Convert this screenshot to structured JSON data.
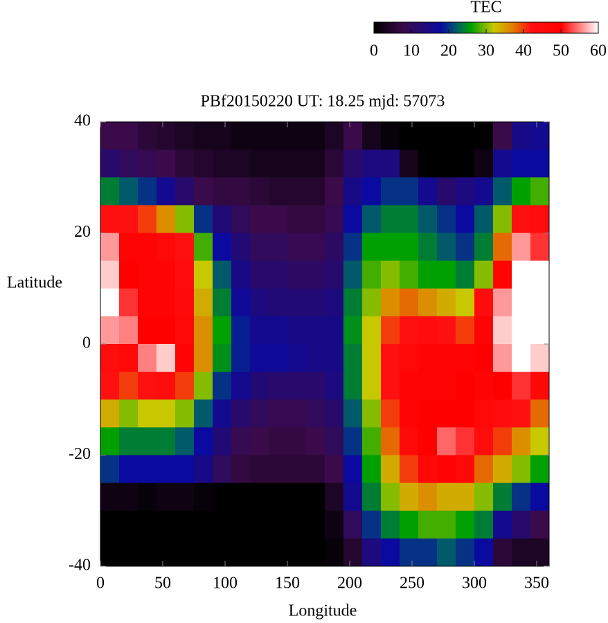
{
  "chart_data": {
    "type": "heatmap",
    "title": "PBf20150220  UT: 18.25  mjd: 57073",
    "xlabel": "Longitude",
    "ylabel": "Latitude",
    "colorbar_label": "TEC",
    "xlim": [
      0,
      360
    ],
    "xticks": [
      0,
      50,
      100,
      150,
      200,
      250,
      300,
      350
    ],
    "ylim": [
      -40,
      40
    ],
    "yticks": [
      -40,
      -20,
      0,
      20,
      40
    ],
    "clim": [
      0,
      60
    ],
    "cticks": [
      0,
      10,
      20,
      30,
      40,
      50,
      60
    ],
    "colorscale": [
      [
        0,
        "#000000"
      ],
      [
        8,
        "#3a0a4a"
      ],
      [
        18,
        "#0a0aa0"
      ],
      [
        22,
        "#005a6a"
      ],
      [
        26,
        "#00a000"
      ],
      [
        32,
        "#c8c800"
      ],
      [
        37,
        "#e08000"
      ],
      [
        42,
        "#ff1010"
      ],
      [
        50,
        "#ff0000"
      ],
      [
        60,
        "#ffffff"
      ]
    ],
    "x": [
      7.5,
      22.5,
      37.5,
      52.5,
      67.5,
      82.5,
      97.5,
      112.5,
      127.5,
      142.5,
      157.5,
      172.5,
      187.5,
      202.5,
      217.5,
      232.5,
      247.5,
      262.5,
      277.5,
      292.5,
      307.5,
      322.5,
      337.5,
      352.5
    ],
    "y": [
      37.5,
      32.5,
      27.5,
      22.5,
      17.5,
      12.5,
      7.5,
      2.5,
      -2.5,
      -7.5,
      -12.5,
      -17.5,
      -22.5,
      -27.5,
      -32.5,
      -37.5
    ],
    "z": [
      [
        8,
        8,
        6,
        5,
        4,
        3,
        3,
        2,
        2,
        2,
        2,
        2,
        4,
        8,
        3,
        1,
        0,
        0,
        0,
        0,
        0,
        8,
        15,
        16
      ],
      [
        12,
        10,
        9,
        8,
        6,
        5,
        4,
        4,
        3,
        3,
        3,
        3,
        6,
        12,
        14,
        14,
        3,
        0,
        0,
        0,
        2,
        16,
        18,
        18
      ],
      [
        24,
        22,
        20,
        16,
        12,
        8,
        7,
        7,
        6,
        5,
        5,
        5,
        8,
        15,
        18,
        20,
        20,
        16,
        12,
        14,
        16,
        22,
        26,
        28
      ],
      [
        42,
        42,
        40,
        36,
        30,
        20,
        13,
        10,
        8,
        8,
        7,
        7,
        9,
        18,
        22,
        24,
        24,
        22,
        20,
        18,
        22,
        30,
        42,
        44
      ],
      [
        56,
        48,
        48,
        46,
        42,
        28,
        18,
        13,
        10,
        10,
        9,
        9,
        11,
        20,
        26,
        26,
        26,
        24,
        22,
        20,
        24,
        38,
        56,
        52
      ],
      [
        58,
        50,
        48,
        48,
        44,
        32,
        22,
        15,
        12,
        12,
        11,
        11,
        12,
        22,
        28,
        30,
        28,
        26,
        26,
        24,
        30,
        48,
        60,
        60
      ],
      [
        60,
        52,
        48,
        48,
        45,
        34,
        24,
        17,
        14,
        13,
        13,
        13,
        14,
        24,
        30,
        36,
        38,
        36,
        34,
        32,
        44,
        56,
        60,
        60
      ],
      [
        56,
        55,
        50,
        50,
        46,
        36,
        26,
        19,
        16,
        16,
        15,
        15,
        15,
        25,
        32,
        40,
        42,
        44,
        42,
        40,
        48,
        58,
        60,
        60
      ],
      [
        44,
        46,
        55,
        58,
        48,
        36,
        25,
        19,
        17,
        17,
        16,
        15,
        15,
        24,
        32,
        42,
        46,
        48,
        48,
        48,
        50,
        56,
        60,
        58
      ],
      [
        42,
        40,
        42,
        44,
        40,
        30,
        20,
        16,
        13,
        12,
        12,
        12,
        14,
        24,
        32,
        42,
        48,
        48,
        48,
        50,
        48,
        50,
        52,
        46
      ],
      [
        34,
        30,
        32,
        32,
        30,
        22,
        16,
        12,
        10,
        9,
        9,
        10,
        12,
        22,
        30,
        40,
        48,
        50,
        50,
        50,
        46,
        44,
        42,
        38
      ],
      [
        26,
        24,
        24,
        24,
        22,
        18,
        13,
        9,
        8,
        7,
        7,
        8,
        10,
        20,
        28,
        38,
        46,
        50,
        54,
        52,
        44,
        40,
        36,
        32
      ],
      [
        20,
        18,
        18,
        18,
        18,
        15,
        10,
        7,
        6,
        6,
        6,
        6,
        8,
        18,
        26,
        34,
        40,
        46,
        48,
        46,
        38,
        34,
        30,
        26
      ],
      [
        2,
        2,
        1,
        2,
        2,
        1,
        0,
        0,
        0,
        0,
        0,
        0,
        4,
        16,
        24,
        30,
        34,
        36,
        34,
        34,
        30,
        24,
        20,
        18
      ],
      [
        0,
        0,
        0,
        0,
        0,
        0,
        0,
        0,
        0,
        0,
        0,
        0,
        2,
        10,
        20,
        24,
        26,
        28,
        28,
        26,
        24,
        16,
        12,
        8
      ],
      [
        0,
        0,
        0,
        0,
        0,
        0,
        0,
        0,
        0,
        0,
        0,
        0,
        1,
        5,
        14,
        18,
        20,
        20,
        22,
        20,
        18,
        6,
        4,
        4
      ]
    ]
  }
}
